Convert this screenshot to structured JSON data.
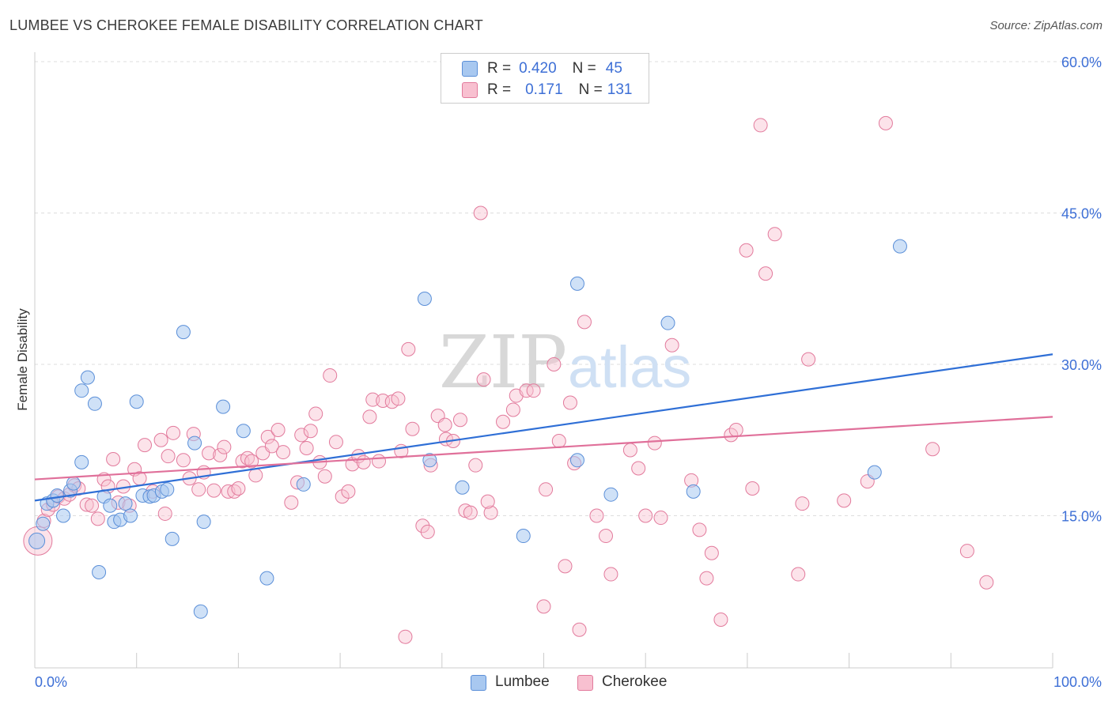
{
  "title": "LUMBEE VS CHEROKEE FEMALE DISABILITY CORRELATION CHART",
  "source": "Source: ZipAtlas.com",
  "watermark": {
    "zip": "ZIP",
    "atlas": "atlas"
  },
  "legend_top": {
    "rows": [
      {
        "r_label": "R =",
        "r_value": "0.420",
        "n_label": "N =",
        "n_value": "45",
        "color": "#a8c8f0",
        "border": "#5b8fd8"
      },
      {
        "r_label": "R =",
        "r_value": "0.171",
        "n_label": "N =",
        "n_value": "131",
        "color": "#f8c0d0",
        "border": "#e27a9c"
      }
    ]
  },
  "legend_bottom": {
    "items": [
      "Lumbee",
      "Cherokee"
    ]
  },
  "colors": {
    "lumbee_line": "#2f6fd6",
    "cherokee_line": "#e0709a",
    "lumbee_fill": "#a8c8f0",
    "cherokee_fill": "#f8c0d0",
    "axis_text": "#3d6fd6"
  },
  "chart_data": {
    "type": "scatter",
    "title": "LUMBEE VS CHEROKEE FEMALE DISABILITY CORRELATION CHART",
    "xlabel": "",
    "ylabel": "Female Disability",
    "xlim": [
      0,
      100
    ],
    "ylim": [
      0,
      62
    ],
    "x_tick_labels": [
      "0.0%",
      "100.0%"
    ],
    "y_ticks": [
      15,
      30,
      45,
      60
    ],
    "y_tick_labels": [
      "15.0%",
      "30.0%",
      "45.0%",
      "60.0%"
    ],
    "grid": "horizontal dashed",
    "series": [
      {
        "name": "Lumbee",
        "trend": {
          "x": [
            0,
            100
          ],
          "y": [
            16.5,
            31.0
          ]
        },
        "points": [
          [
            0.2,
            12.5
          ],
          [
            0.8,
            14.2
          ],
          [
            1.2,
            16.2
          ],
          [
            1.8,
            16.5
          ],
          [
            2.2,
            17.0
          ],
          [
            2.8,
            15.0
          ],
          [
            3.5,
            17.5
          ],
          [
            3.8,
            18.2
          ],
          [
            4.6,
            20.3
          ],
          [
            4.6,
            27.4
          ],
          [
            5.2,
            28.7
          ],
          [
            5.9,
            26.1
          ],
          [
            6.3,
            9.4
          ],
          [
            6.8,
            16.9
          ],
          [
            7.4,
            16.0
          ],
          [
            7.8,
            14.4
          ],
          [
            8.4,
            14.6
          ],
          [
            8.9,
            16.2
          ],
          [
            9.4,
            15.0
          ],
          [
            10.0,
            26.3
          ],
          [
            10.6,
            17.0
          ],
          [
            11.3,
            16.9
          ],
          [
            11.7,
            17.0
          ],
          [
            12.5,
            17.4
          ],
          [
            13.0,
            17.6
          ],
          [
            13.5,
            12.7
          ],
          [
            14.6,
            33.2
          ],
          [
            15.7,
            22.2
          ],
          [
            16.3,
            5.5
          ],
          [
            16.6,
            14.4
          ],
          [
            18.5,
            25.8
          ],
          [
            20.5,
            23.4
          ],
          [
            22.8,
            8.8
          ],
          [
            26.4,
            18.1
          ],
          [
            38.3,
            36.5
          ],
          [
            38.8,
            20.5
          ],
          [
            42.0,
            17.8
          ],
          [
            48.0,
            13.0
          ],
          [
            53.3,
            20.5
          ],
          [
            53.3,
            38.0
          ],
          [
            56.6,
            17.1
          ],
          [
            62.2,
            34.1
          ],
          [
            64.7,
            17.4
          ],
          [
            82.5,
            19.3
          ],
          [
            85.0,
            41.7
          ]
        ]
      },
      {
        "name": "Cherokee",
        "trend": {
          "x": [
            0,
            100
          ],
          "y": [
            18.6,
            24.8
          ]
        },
        "points": [
          [
            0.3,
            12.5
          ],
          [
            0.9,
            14.5
          ],
          [
            1.3,
            15.6
          ],
          [
            1.8,
            16.1
          ],
          [
            2.3,
            16.9
          ],
          [
            2.9,
            16.7
          ],
          [
            3.4,
            17.1
          ],
          [
            3.9,
            18.0
          ],
          [
            4.3,
            17.7
          ],
          [
            5.1,
            16.1
          ],
          [
            5.6,
            16.0
          ],
          [
            6.2,
            14.7
          ],
          [
            6.8,
            18.6
          ],
          [
            7.2,
            17.9
          ],
          [
            7.7,
            20.6
          ],
          [
            8.2,
            16.3
          ],
          [
            8.7,
            17.9
          ],
          [
            9.3,
            16.0
          ],
          [
            9.8,
            19.6
          ],
          [
            10.3,
            18.7
          ],
          [
            10.8,
            22.0
          ],
          [
            11.6,
            17.4
          ],
          [
            12.4,
            22.5
          ],
          [
            12.8,
            15.2
          ],
          [
            13.1,
            20.9
          ],
          [
            13.6,
            23.2
          ],
          [
            14.6,
            20.5
          ],
          [
            15.2,
            18.7
          ],
          [
            15.6,
            23.1
          ],
          [
            16.1,
            17.6
          ],
          [
            16.6,
            19.3
          ],
          [
            17.1,
            21.2
          ],
          [
            17.6,
            17.5
          ],
          [
            18.2,
            21.0
          ],
          [
            18.6,
            21.8
          ],
          [
            19.0,
            17.4
          ],
          [
            19.6,
            17.4
          ],
          [
            20.0,
            17.7
          ],
          [
            20.4,
            20.4
          ],
          [
            20.9,
            20.7
          ],
          [
            21.3,
            20.4
          ],
          [
            21.7,
            19.0
          ],
          [
            22.4,
            21.2
          ],
          [
            22.9,
            22.8
          ],
          [
            23.3,
            21.9
          ],
          [
            23.9,
            23.5
          ],
          [
            24.4,
            21.3
          ],
          [
            25.2,
            16.3
          ],
          [
            25.8,
            18.3
          ],
          [
            26.2,
            23.0
          ],
          [
            26.7,
            21.7
          ],
          [
            27.1,
            23.4
          ],
          [
            27.6,
            25.1
          ],
          [
            28.0,
            20.3
          ],
          [
            28.5,
            18.9
          ],
          [
            29.0,
            28.9
          ],
          [
            29.6,
            22.3
          ],
          [
            30.2,
            16.9
          ],
          [
            30.8,
            17.4
          ],
          [
            31.2,
            20.1
          ],
          [
            31.8,
            20.9
          ],
          [
            32.3,
            20.3
          ],
          [
            32.9,
            24.8
          ],
          [
            33.2,
            26.5
          ],
          [
            33.8,
            20.4
          ],
          [
            34.2,
            26.4
          ],
          [
            35.1,
            26.3
          ],
          [
            35.7,
            26.6
          ],
          [
            36.0,
            21.4
          ],
          [
            36.4,
            3.0
          ],
          [
            36.7,
            31.5
          ],
          [
            37.1,
            23.6
          ],
          [
            38.1,
            14.0
          ],
          [
            38.6,
            13.4
          ],
          [
            38.9,
            20.0
          ],
          [
            39.6,
            24.9
          ],
          [
            40.4,
            22.6
          ],
          [
            41.1,
            22.4
          ],
          [
            41.8,
            24.5
          ],
          [
            42.3,
            15.5
          ],
          [
            42.8,
            15.3
          ],
          [
            43.3,
            20.0
          ],
          [
            43.8,
            45.0
          ],
          [
            44.1,
            28.5
          ],
          [
            44.8,
            15.3
          ],
          [
            46.0,
            24.3
          ],
          [
            47.0,
            25.5
          ],
          [
            47.3,
            26.9
          ],
          [
            48.3,
            27.4
          ],
          [
            49.0,
            27.4
          ],
          [
            50.0,
            6.0
          ],
          [
            50.2,
            17.6
          ],
          [
            51.0,
            30.0
          ],
          [
            51.5,
            22.4
          ],
          [
            52.1,
            10.0
          ],
          [
            52.6,
            26.2
          ],
          [
            53.0,
            20.2
          ],
          [
            53.5,
            3.7
          ],
          [
            54.0,
            34.2
          ],
          [
            55.2,
            15.0
          ],
          [
            56.1,
            13.0
          ],
          [
            56.6,
            9.2
          ],
          [
            58.5,
            21.5
          ],
          [
            59.3,
            19.7
          ],
          [
            60.0,
            15.0
          ],
          [
            60.9,
            22.2
          ],
          [
            61.5,
            14.8
          ],
          [
            62.6,
            31.9
          ],
          [
            64.5,
            18.5
          ],
          [
            65.3,
            13.6
          ],
          [
            66.0,
            8.8
          ],
          [
            66.5,
            11.3
          ],
          [
            67.4,
            4.7
          ],
          [
            68.4,
            23.0
          ],
          [
            68.9,
            23.5
          ],
          [
            69.9,
            41.3
          ],
          [
            70.5,
            17.7
          ],
          [
            71.3,
            53.7
          ],
          [
            71.8,
            39.0
          ],
          [
            72.7,
            42.9
          ],
          [
            75.0,
            9.2
          ],
          [
            75.4,
            16.2
          ],
          [
            76.0,
            30.5
          ],
          [
            79.5,
            16.5
          ],
          [
            81.8,
            18.4
          ],
          [
            83.6,
            53.9
          ],
          [
            88.2,
            21.6
          ],
          [
            91.6,
            11.5
          ],
          [
            93.5,
            8.4
          ],
          [
            40.3,
            24.0
          ],
          [
            44.5,
            16.4
          ]
        ]
      }
    ]
  }
}
